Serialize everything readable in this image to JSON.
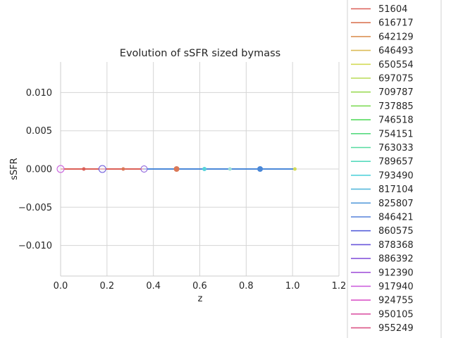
{
  "chart_data": {
    "type": "line",
    "title": "Evolution of sSFR sized bymass",
    "xlabel": "z",
    "ylabel": "sSFR",
    "xlim": [
      0.0,
      1.2
    ],
    "ylim": [
      -0.014,
      0.014
    ],
    "xticks": [
      0.0,
      0.2,
      0.4,
      0.6,
      0.8,
      1.0,
      1.2
    ],
    "xtick_labels": [
      "0.0",
      "0.2",
      "0.4",
      "0.6",
      "0.8",
      "1.0",
      "1.2"
    ],
    "yticks": [
      -0.01,
      -0.005,
      0.0,
      0.005,
      0.01
    ],
    "ytick_labels": [
      "−0.010",
      "−0.005",
      "0.000",
      "0.005",
      "0.010"
    ],
    "grid": true,
    "legend_placement": "right, outside plot",
    "series": [
      {
        "name": "51604",
        "color": "#db5f57"
      },
      {
        "name": "616717",
        "color": "#db7857"
      },
      {
        "name": "642129",
        "color": "#db9257"
      },
      {
        "name": "646493",
        "color": "#dbbc57"
      },
      {
        "name": "650554",
        "color": "#d3db57"
      },
      {
        "name": "697075",
        "color": "#b9db57"
      },
      {
        "name": "709787",
        "color": "#9ddb57"
      },
      {
        "name": "737885",
        "color": "#7fdb57"
      },
      {
        "name": "746518",
        "color": "#57db5f"
      },
      {
        "name": "754151",
        "color": "#57db80"
      },
      {
        "name": "763033",
        "color": "#57dba0"
      },
      {
        "name": "789657",
        "color": "#57dbbe"
      },
      {
        "name": "793490",
        "color": "#57d3db"
      },
      {
        "name": "817104",
        "color": "#57b8db"
      },
      {
        "name": "825807",
        "color": "#579ddb"
      },
      {
        "name": "846421",
        "color": "#5782db"
      },
      {
        "name": "860575",
        "color": "#5760db"
      },
      {
        "name": "878368",
        "color": "#6a57db"
      },
      {
        "name": "886392",
        "color": "#8757db"
      },
      {
        "name": "912390",
        "color": "#a557db"
      },
      {
        "name": "917940",
        "color": "#c957db"
      },
      {
        "name": "924755",
        "color": "#db57c9"
      },
      {
        "name": "950105",
        "color": "#db57a5"
      },
      {
        "name": "955249",
        "color": "#db5787"
      }
    ],
    "lines": [
      {
        "color": "#db5f57",
        "x": [
          0.0,
          0.36
        ],
        "y": [
          0.0,
          0.0
        ]
      },
      {
        "color": "#4a88d8",
        "x": [
          0.36,
          1.01
        ],
        "y": [
          0.0,
          0.0
        ]
      }
    ],
    "points": [
      {
        "x": 0.0,
        "y": 0.0,
        "color": "#c957db",
        "style": "ring",
        "size": 5
      },
      {
        "x": 0.1,
        "y": 0.0,
        "color": "#db5f57",
        "style": "filled",
        "size": 2.5
      },
      {
        "x": 0.18,
        "y": 0.0,
        "color": "#6a57db",
        "style": "ring",
        "size": 5
      },
      {
        "x": 0.27,
        "y": 0.0,
        "color": "#db7857",
        "style": "filled",
        "size": 2.5
      },
      {
        "x": 0.36,
        "y": 0.0,
        "color": "#8757db",
        "style": "ring",
        "size": 4.5
      },
      {
        "x": 0.5,
        "y": 0.0,
        "color": "#db7857",
        "style": "filled",
        "size": 4
      },
      {
        "x": 0.62,
        "y": 0.0,
        "color": "#57d3db",
        "style": "filled",
        "size": 3
      },
      {
        "x": 0.73,
        "y": 0.0,
        "color": "#9ee0d6",
        "style": "filled",
        "size": 2.5
      },
      {
        "x": 0.86,
        "y": 0.0,
        "color": "#4a88d8",
        "style": "filled",
        "size": 4
      },
      {
        "x": 1.01,
        "y": 0.0,
        "color": "#d3db57",
        "style": "filled",
        "size": 2.5
      }
    ]
  }
}
